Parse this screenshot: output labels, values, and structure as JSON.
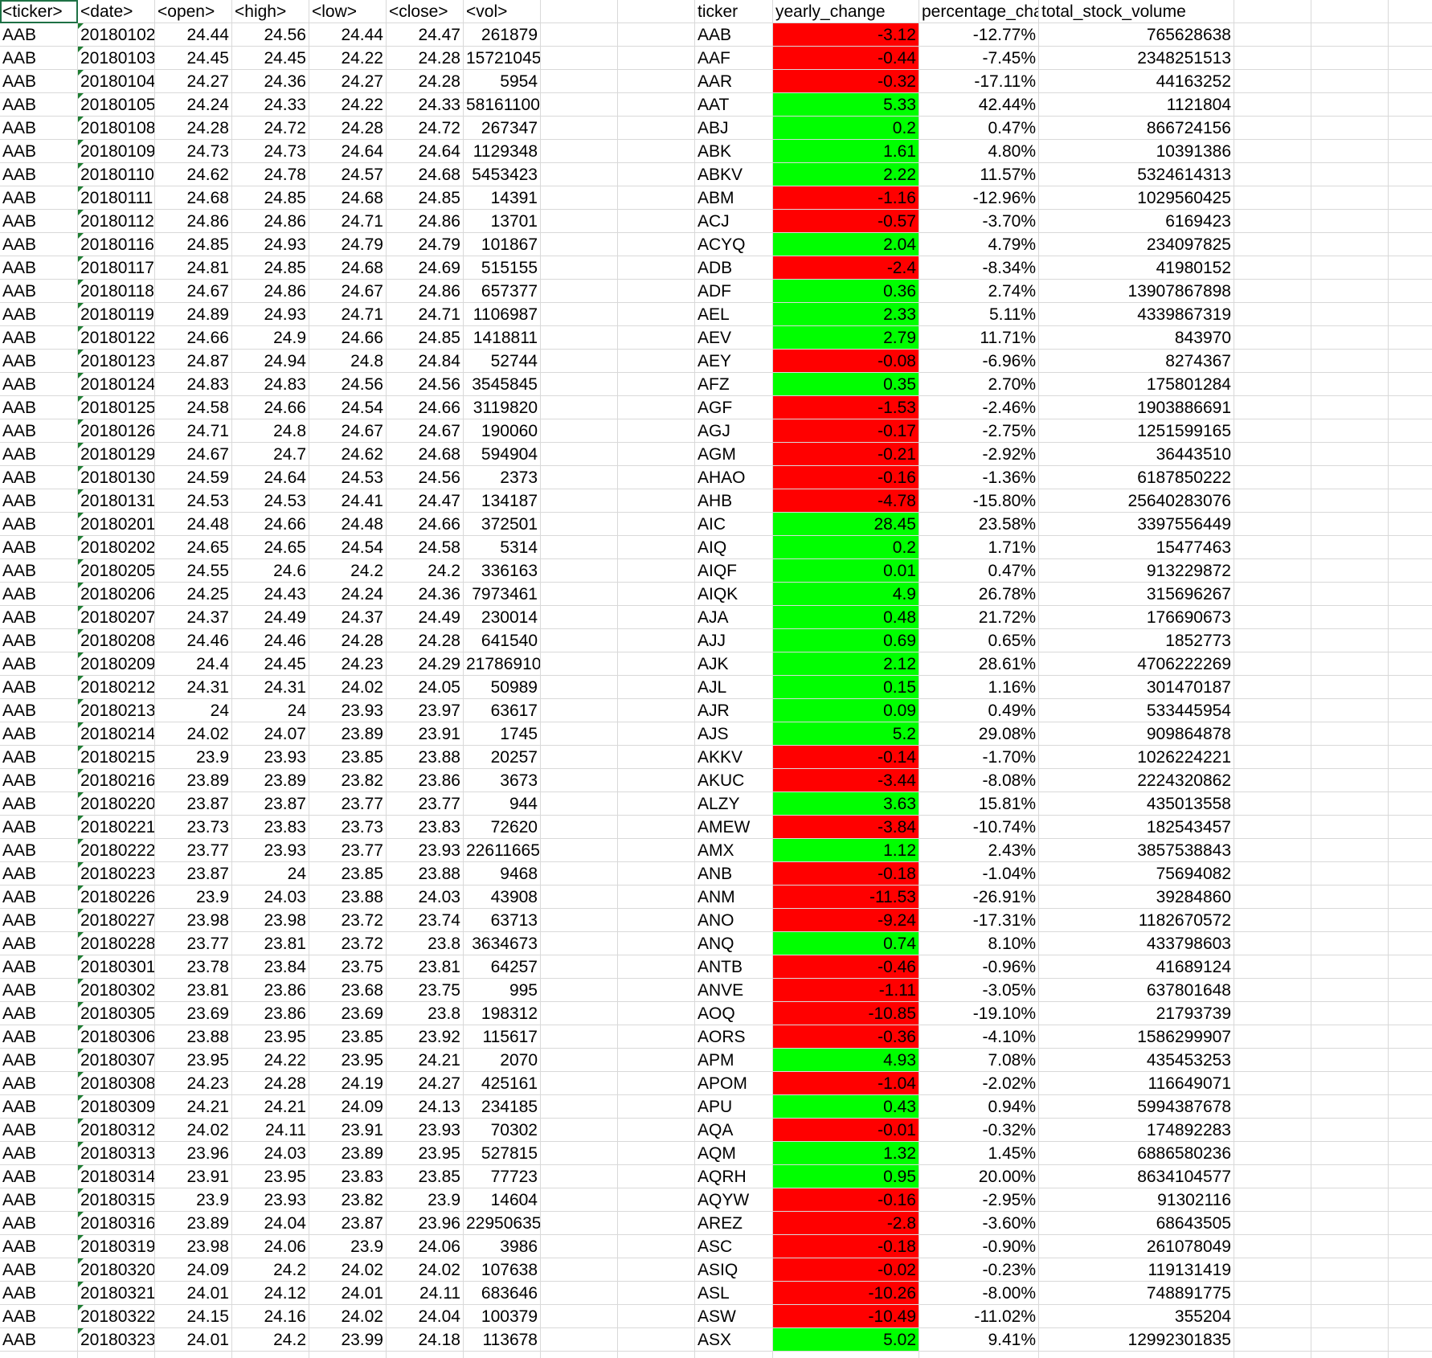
{
  "colors": {
    "positive": "#00ff00",
    "negative": "#ff0000",
    "gridline": "#d9d9d9",
    "error_marker": "#1e7d32"
  },
  "raw_headers": [
    "<ticker>",
    "<date>",
    "<open>",
    "<high>",
    "<low>",
    "<close>",
    "<vol>"
  ],
  "summary_headers": [
    "ticker",
    "yearly_change",
    "percentage_cha",
    "total_stock_volume"
  ],
  "raw_rows": [
    [
      "AAB",
      "20180102",
      "24.44",
      "24.56",
      "24.44",
      "24.47",
      "261879"
    ],
    [
      "AAB",
      "20180103",
      "24.45",
      "24.45",
      "24.22",
      "24.28",
      "15721045"
    ],
    [
      "AAB",
      "20180104",
      "24.27",
      "24.36",
      "24.27",
      "24.28",
      "5954"
    ],
    [
      "AAB",
      "20180105",
      "24.24",
      "24.33",
      "24.22",
      "24.33",
      "58161100"
    ],
    [
      "AAB",
      "20180108",
      "24.28",
      "24.72",
      "24.28",
      "24.72",
      "267347"
    ],
    [
      "AAB",
      "20180109",
      "24.73",
      "24.73",
      "24.64",
      "24.64",
      "1129348"
    ],
    [
      "AAB",
      "20180110",
      "24.62",
      "24.78",
      "24.57",
      "24.68",
      "5453423"
    ],
    [
      "AAB",
      "20180111",
      "24.68",
      "24.85",
      "24.68",
      "24.85",
      "14391"
    ],
    [
      "AAB",
      "20180112",
      "24.86",
      "24.86",
      "24.71",
      "24.86",
      "13701"
    ],
    [
      "AAB",
      "20180116",
      "24.85",
      "24.93",
      "24.79",
      "24.79",
      "101867"
    ],
    [
      "AAB",
      "20180117",
      "24.81",
      "24.85",
      "24.68",
      "24.69",
      "515155"
    ],
    [
      "AAB",
      "20180118",
      "24.67",
      "24.86",
      "24.67",
      "24.86",
      "657377"
    ],
    [
      "AAB",
      "20180119",
      "24.89",
      "24.93",
      "24.71",
      "24.71",
      "1106987"
    ],
    [
      "AAB",
      "20180122",
      "24.66",
      "24.9",
      "24.66",
      "24.85",
      "1418811"
    ],
    [
      "AAB",
      "20180123",
      "24.87",
      "24.94",
      "24.8",
      "24.84",
      "52744"
    ],
    [
      "AAB",
      "20180124",
      "24.83",
      "24.83",
      "24.56",
      "24.56",
      "3545845"
    ],
    [
      "AAB",
      "20180125",
      "24.58",
      "24.66",
      "24.54",
      "24.66",
      "3119820"
    ],
    [
      "AAB",
      "20180126",
      "24.71",
      "24.8",
      "24.67",
      "24.67",
      "190060"
    ],
    [
      "AAB",
      "20180129",
      "24.67",
      "24.7",
      "24.62",
      "24.68",
      "594904"
    ],
    [
      "AAB",
      "20180130",
      "24.59",
      "24.64",
      "24.53",
      "24.56",
      "2373"
    ],
    [
      "AAB",
      "20180131",
      "24.53",
      "24.53",
      "24.41",
      "24.47",
      "134187"
    ],
    [
      "AAB",
      "20180201",
      "24.48",
      "24.66",
      "24.48",
      "24.66",
      "372501"
    ],
    [
      "AAB",
      "20180202",
      "24.65",
      "24.65",
      "24.54",
      "24.58",
      "5314"
    ],
    [
      "AAB",
      "20180205",
      "24.55",
      "24.6",
      "24.2",
      "24.2",
      "336163"
    ],
    [
      "AAB",
      "20180206",
      "24.25",
      "24.43",
      "24.24",
      "24.36",
      "7973461"
    ],
    [
      "AAB",
      "20180207",
      "24.37",
      "24.49",
      "24.37",
      "24.49",
      "230014"
    ],
    [
      "AAB",
      "20180208",
      "24.46",
      "24.46",
      "24.28",
      "24.28",
      "641540"
    ],
    [
      "AAB",
      "20180209",
      "24.4",
      "24.45",
      "24.23",
      "24.29",
      "21786910"
    ],
    [
      "AAB",
      "20180212",
      "24.31",
      "24.31",
      "24.02",
      "24.05",
      "50989"
    ],
    [
      "AAB",
      "20180213",
      "24",
      "24",
      "23.93",
      "23.97",
      "63617"
    ],
    [
      "AAB",
      "20180214",
      "24.02",
      "24.07",
      "23.89",
      "23.91",
      "1745"
    ],
    [
      "AAB",
      "20180215",
      "23.9",
      "23.93",
      "23.85",
      "23.88",
      "20257"
    ],
    [
      "AAB",
      "20180216",
      "23.89",
      "23.89",
      "23.82",
      "23.86",
      "3673"
    ],
    [
      "AAB",
      "20180220",
      "23.87",
      "23.87",
      "23.77",
      "23.77",
      "944"
    ],
    [
      "AAB",
      "20180221",
      "23.73",
      "23.83",
      "23.73",
      "23.83",
      "72620"
    ],
    [
      "AAB",
      "20180222",
      "23.77",
      "23.93",
      "23.77",
      "23.93",
      "22611665"
    ],
    [
      "AAB",
      "20180223",
      "23.87",
      "24",
      "23.85",
      "23.88",
      "9468"
    ],
    [
      "AAB",
      "20180226",
      "23.9",
      "24.03",
      "23.88",
      "24.03",
      "43908"
    ],
    [
      "AAB",
      "20180227",
      "23.98",
      "23.98",
      "23.72",
      "23.74",
      "63713"
    ],
    [
      "AAB",
      "20180228",
      "23.77",
      "23.81",
      "23.72",
      "23.8",
      "3634673"
    ],
    [
      "AAB",
      "20180301",
      "23.78",
      "23.84",
      "23.75",
      "23.81",
      "64257"
    ],
    [
      "AAB",
      "20180302",
      "23.81",
      "23.86",
      "23.68",
      "23.75",
      "995"
    ],
    [
      "AAB",
      "20180305",
      "23.69",
      "23.86",
      "23.69",
      "23.8",
      "198312"
    ],
    [
      "AAB",
      "20180306",
      "23.88",
      "23.95",
      "23.85",
      "23.92",
      "115617"
    ],
    [
      "AAB",
      "20180307",
      "23.95",
      "24.22",
      "23.95",
      "24.21",
      "2070"
    ],
    [
      "AAB",
      "20180308",
      "24.23",
      "24.28",
      "24.19",
      "24.27",
      "425161"
    ],
    [
      "AAB",
      "20180309",
      "24.21",
      "24.21",
      "24.09",
      "24.13",
      "234185"
    ],
    [
      "AAB",
      "20180312",
      "24.02",
      "24.11",
      "23.91",
      "23.93",
      "70302"
    ],
    [
      "AAB",
      "20180313",
      "23.96",
      "24.03",
      "23.89",
      "23.95",
      "527815"
    ],
    [
      "AAB",
      "20180314",
      "23.91",
      "23.95",
      "23.83",
      "23.85",
      "77723"
    ],
    [
      "AAB",
      "20180315",
      "23.9",
      "23.93",
      "23.82",
      "23.9",
      "14604"
    ],
    [
      "AAB",
      "20180316",
      "23.89",
      "24.04",
      "23.87",
      "23.96",
      "22950635"
    ],
    [
      "AAB",
      "20180319",
      "23.98",
      "24.06",
      "23.9",
      "24.06",
      "3986"
    ],
    [
      "AAB",
      "20180320",
      "24.09",
      "24.2",
      "24.02",
      "24.02",
      "107638"
    ],
    [
      "AAB",
      "20180321",
      "24.01",
      "24.12",
      "24.01",
      "24.11",
      "683646"
    ],
    [
      "AAB",
      "20180322",
      "24.15",
      "24.16",
      "24.02",
      "24.04",
      "100379"
    ],
    [
      "AAB",
      "20180323",
      "24.01",
      "24.2",
      "23.99",
      "24.18",
      "113678"
    ]
  ],
  "summary_rows": [
    [
      "AAB",
      "-3.12",
      "-12.77%",
      "765628638"
    ],
    [
      "AAF",
      "-0.44",
      "-7.45%",
      "2348251513"
    ],
    [
      "AAR",
      "-0.32",
      "-17.11%",
      "44163252"
    ],
    [
      "AAT",
      "5.33",
      "42.44%",
      "1121804"
    ],
    [
      "ABJ",
      "0.2",
      "0.47%",
      "866724156"
    ],
    [
      "ABK",
      "1.61",
      "4.80%",
      "10391386"
    ],
    [
      "ABKV",
      "2.22",
      "11.57%",
      "5324614313"
    ],
    [
      "ABM",
      "-1.16",
      "-12.96%",
      "1029560425"
    ],
    [
      "ACJ",
      "-0.57",
      "-3.70%",
      "6169423"
    ],
    [
      "ACYQ",
      "2.04",
      "4.79%",
      "234097825"
    ],
    [
      "ADB",
      "-2.4",
      "-8.34%",
      "41980152"
    ],
    [
      "ADF",
      "0.36",
      "2.74%",
      "13907867898"
    ],
    [
      "AEL",
      "2.33",
      "5.11%",
      "4339867319"
    ],
    [
      "AEV",
      "2.79",
      "11.71%",
      "843970"
    ],
    [
      "AEY",
      "-0.08",
      "-6.96%",
      "8274367"
    ],
    [
      "AFZ",
      "0.35",
      "2.70%",
      "175801284"
    ],
    [
      "AGF",
      "-1.53",
      "-2.46%",
      "1903886691"
    ],
    [
      "AGJ",
      "-0.17",
      "-2.75%",
      "1251599165"
    ],
    [
      "AGM",
      "-0.21",
      "-2.92%",
      "36443510"
    ],
    [
      "AHAO",
      "-0.16",
      "-1.36%",
      "6187850222"
    ],
    [
      "AHB",
      "-4.78",
      "-15.80%",
      "25640283076"
    ],
    [
      "AIC",
      "28.45",
      "23.58%",
      "3397556449"
    ],
    [
      "AIQ",
      "0.2",
      "1.71%",
      "15477463"
    ],
    [
      "AIQF",
      "0.01",
      "0.47%",
      "913229872"
    ],
    [
      "AIQK",
      "4.9",
      "26.78%",
      "315696267"
    ],
    [
      "AJA",
      "0.48",
      "21.72%",
      "176690673"
    ],
    [
      "AJJ",
      "0.69",
      "0.65%",
      "1852773"
    ],
    [
      "AJK",
      "2.12",
      "28.61%",
      "4706222269"
    ],
    [
      "AJL",
      "0.15",
      "1.16%",
      "301470187"
    ],
    [
      "AJR",
      "0.09",
      "0.49%",
      "533445954"
    ],
    [
      "AJS",
      "5.2",
      "29.08%",
      "909864878"
    ],
    [
      "AKKV",
      "-0.14",
      "-1.70%",
      "1026224221"
    ],
    [
      "AKUC",
      "-3.44",
      "-8.08%",
      "2224320862"
    ],
    [
      "ALZY",
      "3.63",
      "15.81%",
      "435013558"
    ],
    [
      "AMEW",
      "-3.84",
      "-10.74%",
      "182543457"
    ],
    [
      "AMX",
      "1.12",
      "2.43%",
      "3857538843"
    ],
    [
      "ANB",
      "-0.18",
      "-1.04%",
      "75694082"
    ],
    [
      "ANM",
      "-11.53",
      "-26.91%",
      "39284860"
    ],
    [
      "ANO",
      "-9.24",
      "-17.31%",
      "1182670572"
    ],
    [
      "ANQ",
      "0.74",
      "8.10%",
      "433798603"
    ],
    [
      "ANTB",
      "-0.46",
      "-0.96%",
      "41689124"
    ],
    [
      "ANVE",
      "-1.11",
      "-3.05%",
      "637801648"
    ],
    [
      "AOQ",
      "-10.85",
      "-19.10%",
      "21793739"
    ],
    [
      "AORS",
      "-0.36",
      "-4.10%",
      "1586299907"
    ],
    [
      "APM",
      "4.93",
      "7.08%",
      "435453253"
    ],
    [
      "APOM",
      "-1.04",
      "-2.02%",
      "116649071"
    ],
    [
      "APU",
      "0.43",
      "0.94%",
      "5994387678"
    ],
    [
      "AQA",
      "-0.01",
      "-0.32%",
      "174892283"
    ],
    [
      "AQM",
      "1.32",
      "1.45%",
      "6886580236"
    ],
    [
      "AQRH",
      "0.95",
      "20.00%",
      "8634104577"
    ],
    [
      "AQYW",
      "-0.16",
      "-2.95%",
      "91302116"
    ],
    [
      "AREZ",
      "-2.8",
      "-3.60%",
      "68643505"
    ],
    [
      "ASC",
      "-0.18",
      "-0.90%",
      "261078049"
    ],
    [
      "ASIQ",
      "-0.02",
      "-0.23%",
      "119131419"
    ],
    [
      "ASL",
      "-10.26",
      "-8.00%",
      "748891775"
    ],
    [
      "ASW",
      "-10.49",
      "-11.02%",
      "355204"
    ],
    [
      "ASX",
      "5.02",
      "9.41%",
      "12992301835"
    ]
  ]
}
